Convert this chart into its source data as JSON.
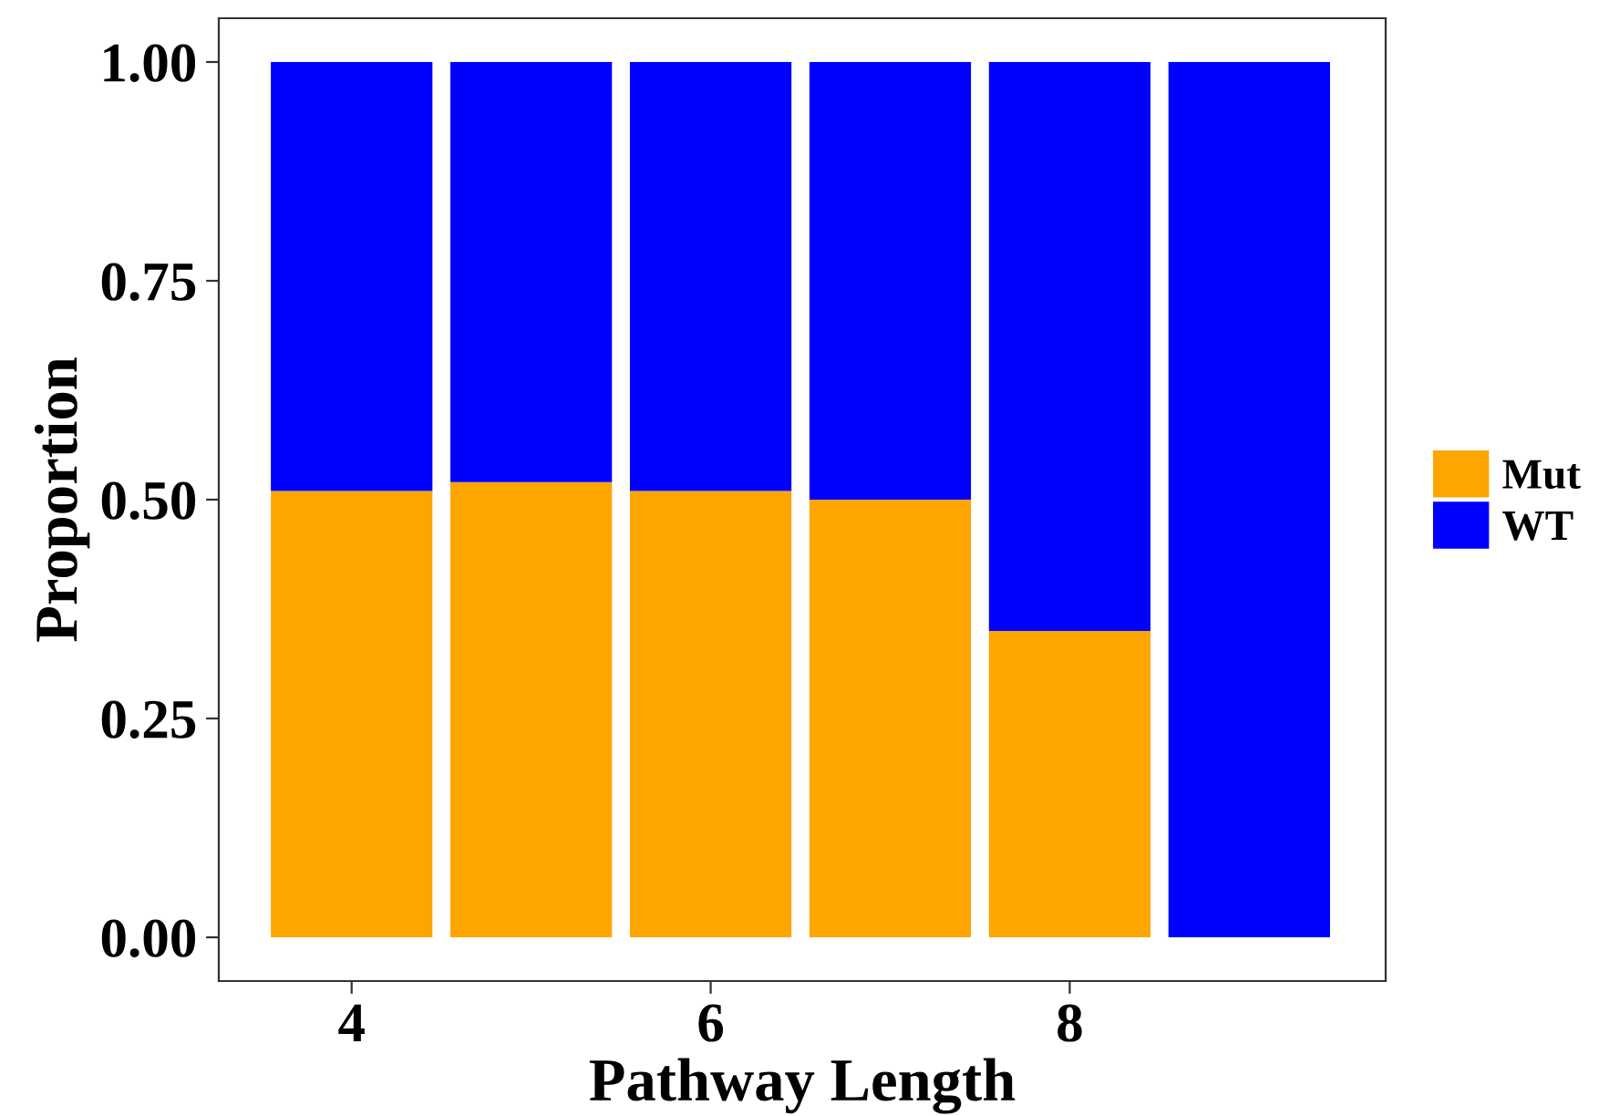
{
  "chart_data": {
    "type": "bar",
    "stacked": true,
    "xlabel": "Pathway Length",
    "ylabel": "Proportion",
    "x": [
      4,
      5,
      6,
      7,
      8,
      9
    ],
    "series": [
      {
        "name": "Mut",
        "color": "#ffa500",
        "values": [
          0.51,
          0.52,
          0.51,
          0.5,
          0.35,
          0
        ]
      },
      {
        "name": "WT",
        "color": "#0000ff",
        "values": [
          0.49,
          0.48,
          0.49,
          0.5,
          0.65,
          1.0
        ]
      }
    ],
    "xlim": [
      3.26,
      9.76
    ],
    "xticks": [
      4,
      6,
      8
    ],
    "ylim": [
      -0.05,
      1.05
    ],
    "yticks": [
      {
        "value": 0,
        "label": "0.00"
      },
      {
        "value": 0.25,
        "label": "0.25"
      },
      {
        "value": 0.5,
        "label": "0.50"
      },
      {
        "value": 0.75,
        "label": "0.75"
      },
      {
        "value": 1,
        "label": "1.00"
      }
    ],
    "grid": false,
    "legend": "right"
  }
}
